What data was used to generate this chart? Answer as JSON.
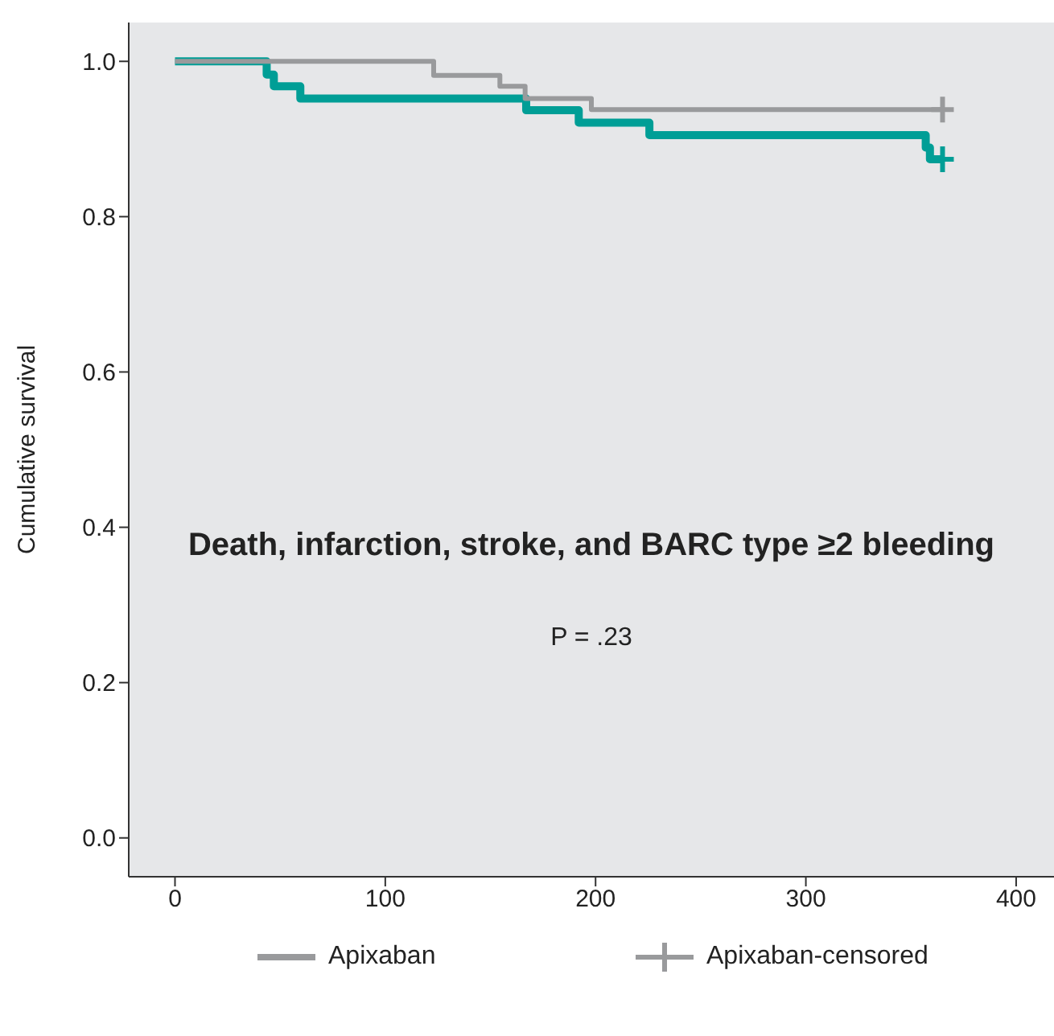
{
  "chart_data": {
    "type": "step",
    "title": "Death, infarction, stroke, and BARC type ≥2 bleeding",
    "ylabel": "Cumulative survival",
    "annotations": [
      "P = .23"
    ],
    "series": [
      {
        "color": "#009e96",
        "x": [
          0,
          43.6,
          47,
          59.6,
          167,
          192,
          225.6,
          357,
          359,
          365
        ],
        "values": [
          1,
          0.983,
          0.968,
          0.952,
          0.937,
          0.921,
          0.905,
          0.889,
          0.874,
          0.874
        ]
      },
      {
        "name": "Apixaban",
        "color": "#999a9c",
        "x": [
          0,
          123,
          154.5,
          166.5,
          198,
          365
        ],
        "values": [
          1,
          0.982,
          0.968,
          0.952,
          0.938,
          0.938
        ]
      },
      {
        "type": "scatter",
        "color": "#009e96",
        "marker": "cross",
        "x": [
          365
        ],
        "values": [
          0.874
        ]
      },
      {
        "type": "scatter",
        "name": "Apixaban-censored",
        "color": "#999a9c",
        "marker": "cross",
        "x": [
          365
        ],
        "values": [
          0.938
        ]
      }
    ],
    "xlim": [
      -22,
      418
    ],
    "xticks": [
      0,
      100,
      200,
      300,
      400
    ],
    "ylim": [
      -0.05,
      1.05
    ],
    "yticks": [
      {
        "value": 0,
        "label": "0.0"
      },
      {
        "value": 0.2,
        "label": "0.2"
      },
      {
        "value": 0.4,
        "label": "0.4"
      },
      {
        "value": 0.6,
        "label": "0.6"
      },
      {
        "value": 0.8,
        "label": "0.8"
      },
      {
        "value": 1,
        "label": "1.0"
      }
    ],
    "grid": false,
    "legend": "bottom"
  }
}
